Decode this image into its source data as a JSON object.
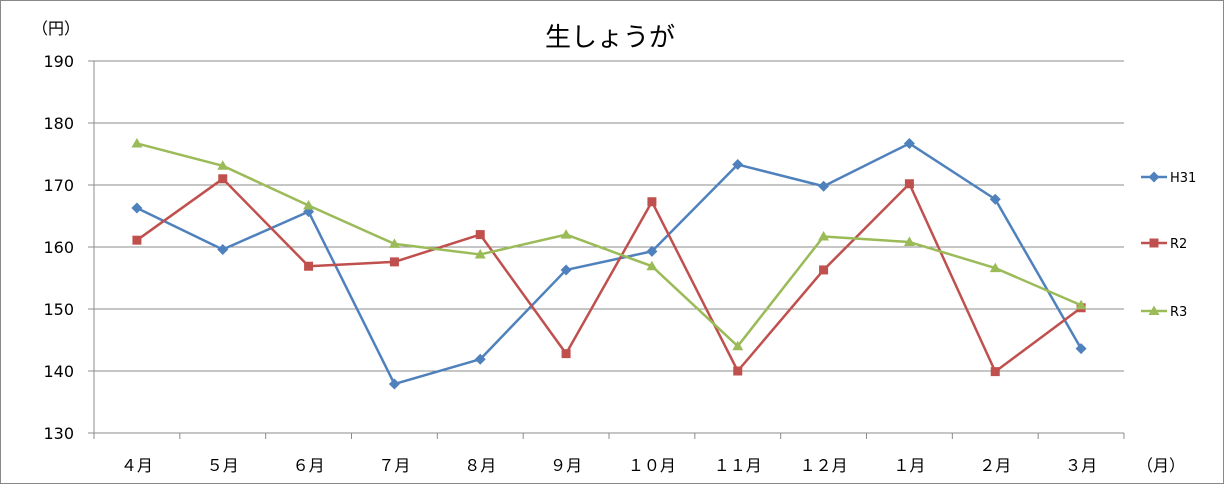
{
  "chart_data": {
    "type": "line",
    "title": "生しょうが",
    "ylabel": "（円）",
    "xlabel": "（月）",
    "ylim": [
      130,
      190
    ],
    "y_ticks": [
      "130",
      "140",
      "150",
      "160",
      "170",
      "180",
      "190"
    ],
    "grid": true,
    "legend_position": "right",
    "categories": [
      "４月",
      "５月",
      "６月",
      "７月",
      "８月",
      "９月",
      "１０月",
      "１１月",
      "１２月",
      "１月",
      "２月",
      "３月"
    ],
    "series": [
      {
        "name": "H31",
        "color": "#4F81BD",
        "marker": "diamond",
        "values": [
          166.3,
          159.6,
          165.7,
          137.9,
          141.9,
          156.3,
          159.3,
          173.3,
          169.8,
          176.7,
          167.7,
          143.6
        ]
      },
      {
        "name": "R2",
        "color": "#C0504D",
        "marker": "square",
        "values": [
          161.1,
          171.0,
          156.9,
          157.6,
          162.0,
          142.8,
          167.3,
          140.0,
          156.3,
          170.2,
          139.9,
          150.2
        ]
      },
      {
        "name": "R3",
        "color": "#9BBB59",
        "marker": "triangle",
        "values": [
          176.7,
          173.1,
          166.7,
          160.5,
          158.8,
          162.0,
          156.9,
          144.0,
          161.7,
          160.8,
          156.6,
          150.6
        ]
      }
    ]
  }
}
